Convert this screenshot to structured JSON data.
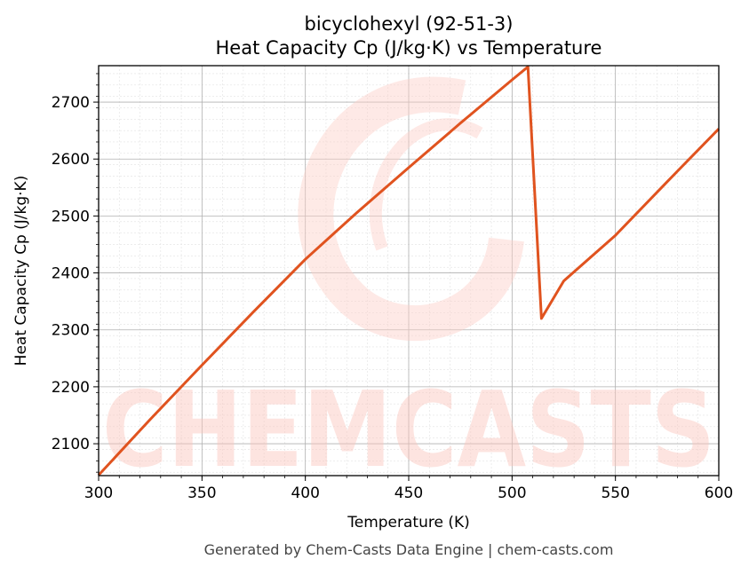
{
  "chart_data": {
    "type": "line",
    "title_line1": "bicyclohexyl (92-51-3)",
    "title_line2": "Heat Capacity Cp (J/kg·K) vs Temperature",
    "xlabel": "Temperature (K)",
    "ylabel": "Heat Capacity Cp (J/kg·K)",
    "xlim": [
      300,
      600
    ],
    "ylim": [
      2044,
      2764
    ],
    "xticks": [
      300,
      350,
      400,
      450,
      500,
      550,
      600
    ],
    "yticks": [
      2100,
      2200,
      2300,
      2400,
      2500,
      2600,
      2700
    ],
    "grid": true,
    "series": [
      {
        "name": "Cp",
        "color": "#e0531f",
        "x": [
          300,
          325,
          350,
          375,
          400,
          425,
          450,
          475,
          500,
          507.7,
          514.2,
          525,
          550,
          575,
          600
        ],
        "y": [
          2045,
          2143,
          2238,
          2332,
          2424,
          2506,
          2585,
          2663,
          2739,
          2762,
          2320,
          2386,
          2466,
          2560,
          2653
        ]
      }
    ],
    "watermark": "CHEMCASTS"
  },
  "footer": "Generated by Chem-Casts Data Engine | chem-casts.com"
}
